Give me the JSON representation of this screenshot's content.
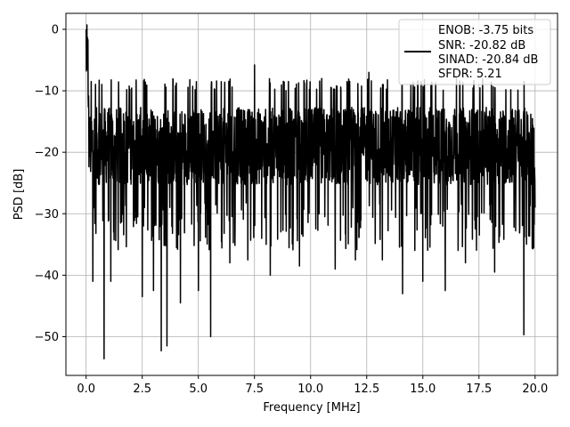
{
  "chart_data": {
    "type": "line",
    "title": "",
    "xlabel": "Frequency [MHz]",
    "ylabel": "PSD [dB]",
    "xlim": [
      -0.9,
      21.0
    ],
    "ylim": [
      -56.3,
      2.6
    ],
    "x_ticks": [
      0.0,
      2.5,
      5.0,
      7.5,
      10.0,
      12.5,
      15.0,
      17.5,
      20.0
    ],
    "x_tick_labels": [
      "0.0",
      "2.5",
      "5.0",
      "7.5",
      "10.0",
      "12.5",
      "15.0",
      "17.5",
      "20.0"
    ],
    "y_ticks": [
      0,
      -10,
      -20,
      -30,
      -40,
      -50
    ],
    "y_tick_labels": [
      "0",
      "−10",
      "−20",
      "−30",
      "−40",
      "−50"
    ],
    "grid": true,
    "legend_position": "top-right",
    "legend_entries": [
      "ENOB: -3.75 bits",
      "SNR: -20.82 dB",
      "SINAD: -20.84 dB",
      "SFDR: 5.21"
    ],
    "line_color": "#000000",
    "series": [
      {
        "name": "",
        "x_start": 0.0,
        "x_end": 20.0,
        "y_envelope": [
          -6,
          0,
          -3,
          -12,
          -18,
          -22,
          -19,
          -25,
          -21,
          -23,
          -27,
          -22,
          -26,
          -24,
          -28,
          -20,
          -25,
          -23,
          -27,
          -21
        ],
        "y_range_typical": [
          -28,
          -10
        ],
        "spikes": [
          {
            "x": 0.0,
            "y": 0.0
          },
          {
            "x": 0.05,
            "y": -6.5
          },
          {
            "x": 0.3,
            "y": -41
          },
          {
            "x": 0.8,
            "y": -53.6
          },
          {
            "x": 1.1,
            "y": -41
          },
          {
            "x": 2.5,
            "y": -43.5
          },
          {
            "x": 3.0,
            "y": -42.5
          },
          {
            "x": 3.35,
            "y": -52.3
          },
          {
            "x": 3.6,
            "y": -51.5
          },
          {
            "x": 4.2,
            "y": -44.5
          },
          {
            "x": 5.0,
            "y": -42.5
          },
          {
            "x": 5.55,
            "y": -50
          },
          {
            "x": 6.4,
            "y": -38
          },
          {
            "x": 7.2,
            "y": -37.5
          },
          {
            "x": 7.5,
            "y": -5.8
          },
          {
            "x": 8.2,
            "y": -40
          },
          {
            "x": 9.5,
            "y": -38.5
          },
          {
            "x": 10.5,
            "y": -8
          },
          {
            "x": 11.1,
            "y": -39
          },
          {
            "x": 12.0,
            "y": -37.5
          },
          {
            "x": 12.6,
            "y": -7
          },
          {
            "x": 13.2,
            "y": -37.5
          },
          {
            "x": 14.1,
            "y": -43
          },
          {
            "x": 15.0,
            "y": -41
          },
          {
            "x": 16.0,
            "y": -42.5
          },
          {
            "x": 16.5,
            "y": -8
          },
          {
            "x": 16.9,
            "y": -38
          },
          {
            "x": 18.2,
            "y": -39.5
          },
          {
            "x": 19.5,
            "y": -49.7
          },
          {
            "x": 20.0,
            "y": -29
          }
        ]
      }
    ]
  }
}
